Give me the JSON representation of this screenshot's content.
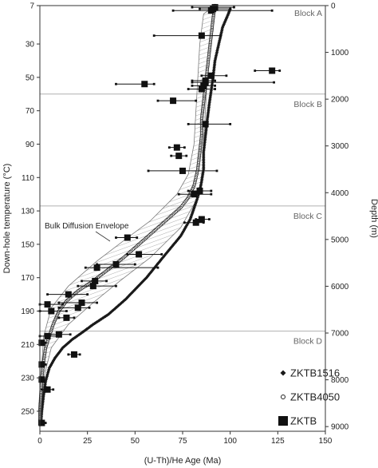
{
  "chart_data": {
    "type": "scatter",
    "xlabel": "(U-Th)/He Age (Ma)",
    "ylabel_left": "Down-hole temperature (°C)",
    "ylabel_right": "Depth (m)",
    "xlim": [
      0,
      150
    ],
    "ylim_temperature": [
      7,
      262
    ],
    "ylim_depth": [
      0,
      9100
    ],
    "xticks": [
      0,
      25,
      50,
      75,
      100,
      125,
      150
    ],
    "yticks_temperature": [
      7,
      30,
      50,
      70,
      90,
      110,
      130,
      150,
      170,
      190,
      210,
      230,
      250
    ],
    "yticks_depth": [
      0,
      1000,
      2000,
      3000,
      4000,
      5000,
      6000,
      7000,
      8000,
      9000
    ],
    "grid": false,
    "legend_position": "bottom-right",
    "blocks": [
      {
        "label": "Block A",
        "boundary_temperature": 7
      },
      {
        "label": "Block B",
        "boundary_temperature": 60
      },
      {
        "label": "Block C",
        "boundary_temperature": 127
      },
      {
        "label": "Block D",
        "boundary_temperature": 202
      }
    ],
    "annotation": "Bulk Diffusion Envelope",
    "envelope": {
      "left": [
        [
          86,
          12
        ],
        [
          84,
          30
        ],
        [
          83,
          50
        ],
        [
          82,
          70
        ],
        [
          81,
          90
        ],
        [
          78,
          108
        ],
        [
          72,
          120
        ],
        [
          58,
          136
        ],
        [
          45,
          147
        ],
        [
          30,
          160
        ],
        [
          15,
          175
        ],
        [
          6,
          188
        ],
        [
          2,
          205
        ],
        [
          0.5,
          230
        ],
        [
          0,
          255
        ]
      ],
      "right": [
        [
          92,
          7
        ],
        [
          89,
          30
        ],
        [
          88,
          50
        ],
        [
          87,
          70
        ],
        [
          86,
          90
        ],
        [
          86,
          108
        ],
        [
          84,
          120
        ],
        [
          74,
          140
        ],
        [
          58,
          158
        ],
        [
          42,
          172
        ],
        [
          28,
          185
        ],
        [
          15,
          198
        ],
        [
          6,
          212
        ],
        [
          2,
          230
        ],
        [
          0.5,
          255
        ]
      ]
    },
    "series": [
      {
        "name": "ZKTB1516",
        "marker": "diamond",
        "points": [
          [
            100,
            9
          ],
          [
            99,
            12
          ],
          [
            96,
            20
          ],
          [
            94,
            30
          ],
          [
            92,
            40
          ],
          [
            91,
            50
          ],
          [
            90,
            58
          ],
          [
            89,
            66
          ],
          [
            88,
            75
          ],
          [
            87,
            85
          ],
          [
            86,
            95
          ],
          [
            86,
            105
          ],
          [
            85,
            112
          ],
          [
            84,
            118
          ],
          [
            82,
            125
          ],
          [
            79,
            135
          ],
          [
            74,
            145
          ],
          [
            66,
            156
          ],
          [
            56,
            170
          ],
          [
            45,
            183
          ],
          [
            36,
            192
          ],
          [
            28,
            198
          ],
          [
            22,
            203
          ],
          [
            17,
            207
          ],
          [
            12,
            212
          ],
          [
            8,
            218
          ],
          [
            5,
            224
          ],
          [
            3,
            232
          ],
          [
            2,
            240
          ],
          [
            1,
            250
          ],
          [
            0.5,
            258
          ]
        ]
      },
      {
        "name": "ZKTB4050",
        "marker": "circle",
        "points": [
          [
            92,
            7
          ],
          [
            91,
            15
          ],
          [
            90,
            25
          ],
          [
            89,
            35
          ],
          [
            88,
            45
          ],
          [
            87,
            55
          ],
          [
            86,
            65
          ],
          [
            85,
            75
          ],
          [
            85,
            85
          ],
          [
            84,
            95
          ],
          [
            83,
            105
          ],
          [
            81,
            115
          ],
          [
            78,
            122
          ],
          [
            74,
            128
          ],
          [
            68,
            134
          ],
          [
            60,
            142
          ],
          [
            52,
            150
          ],
          [
            44,
            158
          ],
          [
            36,
            165
          ],
          [
            28,
            172
          ],
          [
            20,
            178
          ],
          [
            14,
            184
          ],
          [
            10,
            190
          ],
          [
            7,
            198
          ],
          [
            5,
            205
          ],
          [
            3,
            212
          ],
          [
            2,
            220
          ],
          [
            1,
            230
          ],
          [
            0.5,
            240
          ],
          [
            0,
            250
          ],
          [
            0,
            258
          ]
        ]
      },
      {
        "name": "ZKTB",
        "marker": "square",
        "points": [
          {
            "x": 92,
            "y": 8,
            "lo": 80,
            "hi": 102
          },
          {
            "x": 91,
            "y": 9,
            "lo": 84,
            "hi": 100
          },
          {
            "x": 90,
            "y": 10,
            "lo": 70,
            "hi": 122
          },
          {
            "x": 85,
            "y": 25,
            "lo": 60,
            "hi": 95
          },
          {
            "x": 90,
            "y": 49,
            "lo": 85,
            "hi": 98
          },
          {
            "x": 122,
            "y": 46,
            "lo": 113,
            "hi": 126
          },
          {
            "x": 87,
            "y": 52,
            "lo": 80,
            "hi": 92
          },
          {
            "x": 87,
            "y": 53,
            "lo": 80,
            "hi": 123
          },
          {
            "x": 55,
            "y": 54,
            "lo": 40,
            "hi": 60
          },
          {
            "x": 86,
            "y": 55,
            "lo": 80,
            "hi": 92
          },
          {
            "x": 85,
            "y": 57,
            "lo": 78,
            "hi": 92
          },
          {
            "x": 70,
            "y": 64,
            "lo": 62,
            "hi": 82
          },
          {
            "x": 87,
            "y": 78,
            "lo": 78,
            "hi": 100
          },
          {
            "x": 72,
            "y": 92,
            "lo": 68,
            "hi": 76
          },
          {
            "x": 73,
            "y": 97,
            "lo": 69,
            "hi": 77
          },
          {
            "x": 75,
            "y": 106,
            "lo": 57,
            "hi": 93
          },
          {
            "x": 84,
            "y": 118,
            "lo": 78,
            "hi": 90
          },
          {
            "x": 81,
            "y": 120,
            "lo": 73,
            "hi": 90
          },
          {
            "x": 85,
            "y": 135,
            "lo": 82,
            "hi": 89
          },
          {
            "x": 82,
            "y": 137,
            "lo": 76,
            "hi": 86
          },
          {
            "x": 46,
            "y": 146,
            "lo": 40,
            "hi": 51
          },
          {
            "x": 52,
            "y": 156,
            "lo": 46,
            "hi": 64
          },
          {
            "x": 40,
            "y": 162,
            "lo": 30,
            "hi": 50
          },
          {
            "x": 30,
            "y": 164,
            "lo": 24,
            "hi": 62
          },
          {
            "x": 29,
            "y": 172,
            "lo": 22,
            "hi": 35
          },
          {
            "x": 28,
            "y": 175,
            "lo": 20,
            "hi": 40
          },
          {
            "x": 15,
            "y": 180,
            "lo": 4,
            "hi": 25
          },
          {
            "x": 22,
            "y": 185,
            "lo": 10,
            "hi": 30
          },
          {
            "x": 4,
            "y": 186,
            "lo": 0,
            "hi": 12
          },
          {
            "x": 20,
            "y": 188,
            "lo": 10,
            "hi": 26
          },
          {
            "x": 6,
            "y": 190,
            "lo": 0,
            "hi": 14
          },
          {
            "x": 14,
            "y": 194,
            "lo": 10,
            "hi": 18
          },
          {
            "x": 10,
            "y": 204,
            "lo": 3,
            "hi": 16
          },
          {
            "x": 4,
            "y": 205,
            "lo": 0,
            "hi": 10
          },
          {
            "x": 1,
            "y": 209,
            "lo": 0,
            "hi": 3
          },
          {
            "x": 18,
            "y": 216,
            "lo": 15,
            "hi": 21
          },
          {
            "x": 1,
            "y": 222,
            "lo": 0,
            "hi": 3
          },
          {
            "x": 1,
            "y": 231,
            "lo": 0,
            "hi": 2
          },
          {
            "x": 4,
            "y": 237,
            "lo": 1,
            "hi": 7
          },
          {
            "x": 1,
            "y": 257,
            "lo": 0,
            "hi": 3
          }
        ]
      }
    ]
  }
}
